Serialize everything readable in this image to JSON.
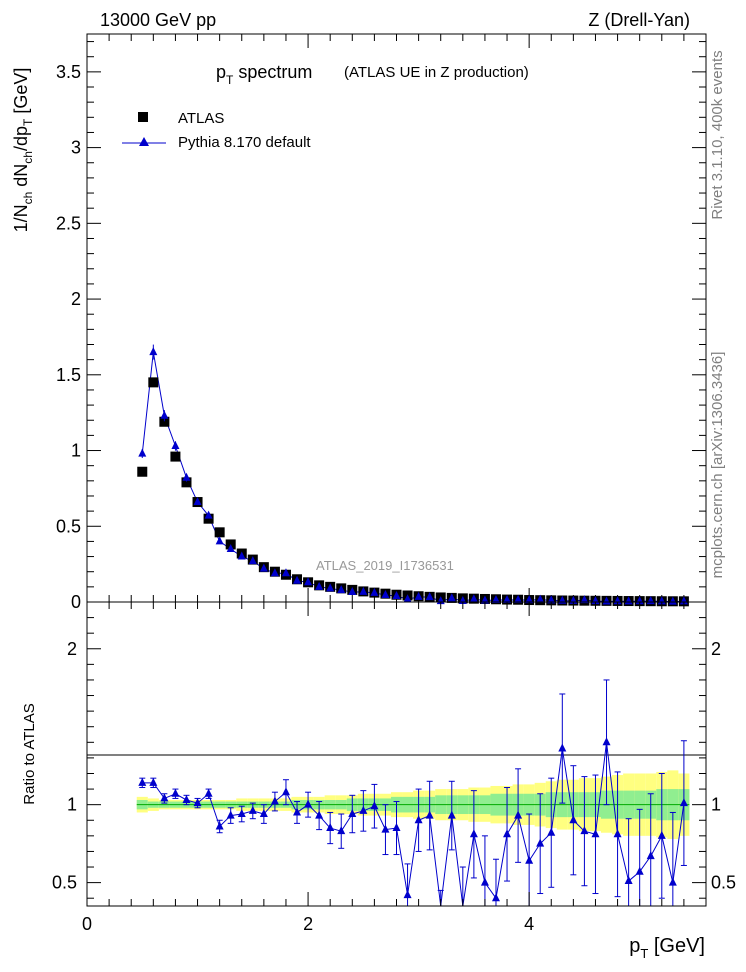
{
  "header": {
    "left": "13000 GeV pp",
    "right": "Z (Drell-Yan)"
  },
  "side_text": {
    "top": "Rivet 3.1.10,  400k events",
    "bottom": "mcplots.cern.ch [arXiv:1306.3436]"
  },
  "colors": {
    "data": "#000000",
    "mc": "#0000cc",
    "band_outer": "#ffff80",
    "band_inner": "#90ee90",
    "ref_line": "#00aa00",
    "watermark": "#999999"
  },
  "chart_data": {
    "type": "scatter",
    "title": "p_T spectrum",
    "subtitle": "(ATLAS UE in Z production)",
    "analysis_label": "ATLAS_2019_I1736531",
    "xlabel": "p_T [GeV]",
    "ylabel": "1/N_ch dN_ch/dp_T [GeV]",
    "ratio_ylabel": "Ratio to ATLAS",
    "xlim": [
      0,
      5.6
    ],
    "ylim": [
      0,
      3.75
    ],
    "ratio_ylim": [
      0.35,
      2.3
    ],
    "x_ticks": [
      0,
      2,
      4
    ],
    "y_ticks": [
      0,
      0.5,
      1,
      1.5,
      2,
      2.5,
      3,
      3.5
    ],
    "ratio_ticks": [
      0.5,
      1,
      2
    ],
    "legend_position": "top-left",
    "x": [
      0.5,
      0.6,
      0.7,
      0.8,
      0.9,
      1.0,
      1.1,
      1.2,
      1.3,
      1.4,
      1.5,
      1.6,
      1.7,
      1.8,
      1.9,
      2.0,
      2.1,
      2.2,
      2.3,
      2.4,
      2.5,
      2.6,
      2.7,
      2.8,
      2.9,
      3.0,
      3.1,
      3.2,
      3.3,
      3.4,
      3.5,
      3.6,
      3.7,
      3.8,
      3.9,
      4.0,
      4.1,
      4.2,
      4.3,
      4.4,
      4.5,
      4.6,
      4.7,
      4.8,
      4.9,
      5.0,
      5.1,
      5.2,
      5.3,
      5.4
    ],
    "series": [
      {
        "name": "ATLAS",
        "marker": "square",
        "values": [
          0.86,
          1.45,
          1.19,
          0.96,
          0.79,
          0.66,
          0.55,
          0.46,
          0.38,
          0.32,
          0.28,
          0.23,
          0.2,
          0.18,
          0.15,
          0.13,
          0.11,
          0.1,
          0.09,
          0.08,
          0.07,
          0.062,
          0.055,
          0.048,
          0.043,
          0.038,
          0.034,
          0.03,
          0.027,
          0.024,
          0.022,
          0.02,
          0.018,
          0.016,
          0.015,
          0.013,
          0.012,
          0.011,
          0.01,
          0.0095,
          0.0088,
          0.0081,
          0.0075,
          0.0069,
          0.0064,
          0.0059,
          0.0055,
          0.0051,
          0.0048,
          0.0045
        ]
      },
      {
        "name": "Pythia 8.170 default",
        "marker": "triangle",
        "values": [
          0.98,
          1.65,
          1.23,
          1.03,
          0.82,
          0.66,
          0.57,
          0.4,
          0.35,
          0.3,
          0.27,
          0.22,
          0.19,
          0.19,
          0.14,
          0.13,
          0.1,
          0.09,
          0.078,
          0.066,
          0.067,
          0.06,
          0.046,
          0.04,
          0.018,
          0.034,
          0.032,
          0.006,
          0.025,
          0.007,
          0.018,
          0.01,
          0.013,
          0.013,
          0.014,
          0.012,
          0.016,
          0.011,
          0.0083,
          0.0078,
          0.012,
          0.0058,
          0.0037,
          0.0049,
          0.0043,
          0.0047,
          0.006,
          0.0038,
          0.0024,
          0.0045
        ]
      }
    ],
    "ratio": {
      "values": [
        1.14,
        1.14,
        1.04,
        1.07,
        1.03,
        1.01,
        1.07,
        0.86,
        0.93,
        0.94,
        0.96,
        0.94,
        1.02,
        1.08,
        0.95,
        1.0,
        0.93,
        0.85,
        0.83,
        0.94,
        0.96,
        0.99,
        0.84,
        0.85,
        0.42,
        0.9,
        0.93,
        0.2,
        0.93,
        0.3,
        0.81,
        0.5,
        0.4,
        0.81,
        0.93,
        0.64,
        0.75,
        0.82,
        1.36,
        0.9,
        0.83,
        0.81,
        1.4,
        0.81,
        0.51,
        0.57,
        0.67,
        0.8,
        0.5,
        1.01
      ],
      "errors": [
        0.03,
        0.03,
        0.03,
        0.03,
        0.03,
        0.03,
        0.03,
        0.04,
        0.05,
        0.05,
        0.05,
        0.06,
        0.06,
        0.08,
        0.07,
        0.08,
        0.09,
        0.1,
        0.11,
        0.12,
        0.13,
        0.14,
        0.16,
        0.17,
        0.2,
        0.2,
        0.22,
        0.25,
        0.22,
        0.3,
        0.28,
        0.3,
        0.25,
        0.3,
        0.3,
        0.3,
        0.32,
        0.35,
        0.35,
        0.35,
        0.35,
        0.38,
        0.4,
        0.4,
        0.4,
        0.4,
        0.4,
        0.4,
        0.45,
        0.4
      ],
      "band_inner": [
        0.03,
        0.02,
        0.02,
        0.02,
        0.02,
        0.02,
        0.02,
        0.02,
        0.02,
        0.02,
        0.02,
        0.02,
        0.02,
        0.02,
        0.03,
        0.03,
        0.03,
        0.03,
        0.03,
        0.04,
        0.04,
        0.04,
        0.04,
        0.05,
        0.05,
        0.05,
        0.05,
        0.06,
        0.06,
        0.06,
        0.06,
        0.06,
        0.07,
        0.07,
        0.07,
        0.07,
        0.07,
        0.08,
        0.08,
        0.08,
        0.08,
        0.08,
        0.09,
        0.09,
        0.09,
        0.09,
        0.09,
        0.1,
        0.1,
        0.1
      ],
      "band_outer": [
        0.05,
        0.04,
        0.03,
        0.03,
        0.03,
        0.03,
        0.03,
        0.03,
        0.03,
        0.04,
        0.04,
        0.04,
        0.04,
        0.04,
        0.05,
        0.05,
        0.05,
        0.06,
        0.06,
        0.06,
        0.07,
        0.07,
        0.07,
        0.08,
        0.08,
        0.09,
        0.09,
        0.1,
        0.1,
        0.1,
        0.11,
        0.11,
        0.12,
        0.12,
        0.13,
        0.13,
        0.14,
        0.15,
        0.16,
        0.16,
        0.17,
        0.17,
        0.18,
        0.19,
        0.2,
        0.2,
        0.2,
        0.21,
        0.22,
        0.2
      ]
    }
  }
}
